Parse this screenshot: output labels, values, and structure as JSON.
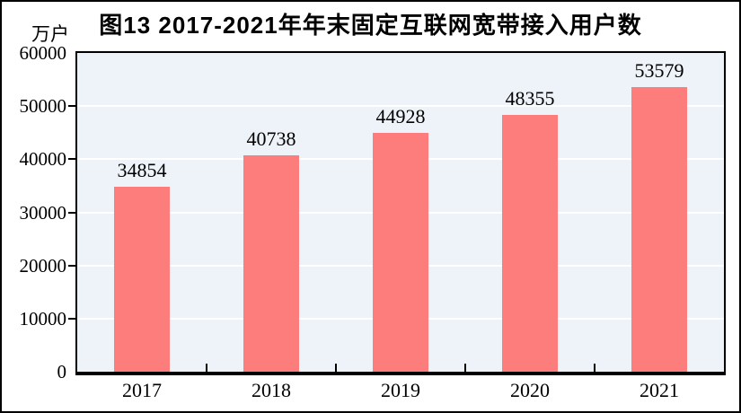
{
  "chart": {
    "unit_label": "万户"
  },
  "chart_data": {
    "type": "bar",
    "title": "图13  2017-2021年年末固定互联网宽带接入用户数",
    "categories": [
      "2017",
      "2018",
      "2019",
      "2020",
      "2021"
    ],
    "values": [
      34854,
      40738,
      44928,
      48355,
      53579
    ],
    "xlabel": "",
    "ylabel": "万户",
    "ylim": [
      0,
      60000
    ],
    "yticks": [
      0,
      10000,
      20000,
      30000,
      40000,
      50000,
      60000
    ],
    "grid": true,
    "data_labels": true,
    "legend": "none",
    "colors": {
      "bar": "#FD7C7C",
      "plot_background": "#EDF3F8",
      "gridline": "#FFFFFF",
      "axis": "#000000",
      "text": "#000000"
    }
  }
}
